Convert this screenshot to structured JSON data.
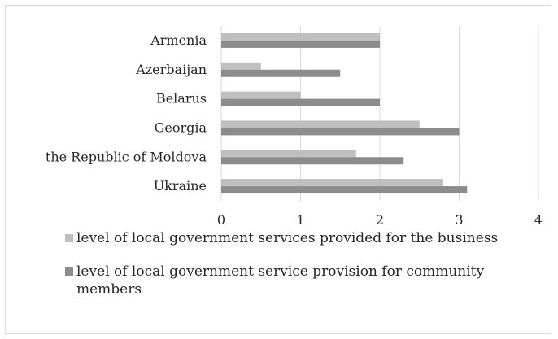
{
  "chart_data": {
    "type": "bar",
    "orientation": "horizontal",
    "categories": [
      "Armenia",
      "Azerbaijan",
      "Belarus",
      "Georgia",
      "the Republic of Moldova",
      "Ukraine"
    ],
    "series": [
      {
        "name": "level of local government services provided for the business",
        "color": "#bfbfbf",
        "values": [
          2.0,
          0.5,
          1.0,
          2.5,
          1.7,
          2.8
        ]
      },
      {
        "name": "level of local government service provision for community members",
        "color": "#8c8c8c",
        "values": [
          2.0,
          1.5,
          2.0,
          3.0,
          2.3,
          3.1
        ]
      }
    ],
    "xlim": [
      0,
      4
    ],
    "x_ticks": [
      "0",
      "1",
      "2",
      "3",
      "4"
    ],
    "grid": "vertical",
    "legend_position": "bottom"
  }
}
